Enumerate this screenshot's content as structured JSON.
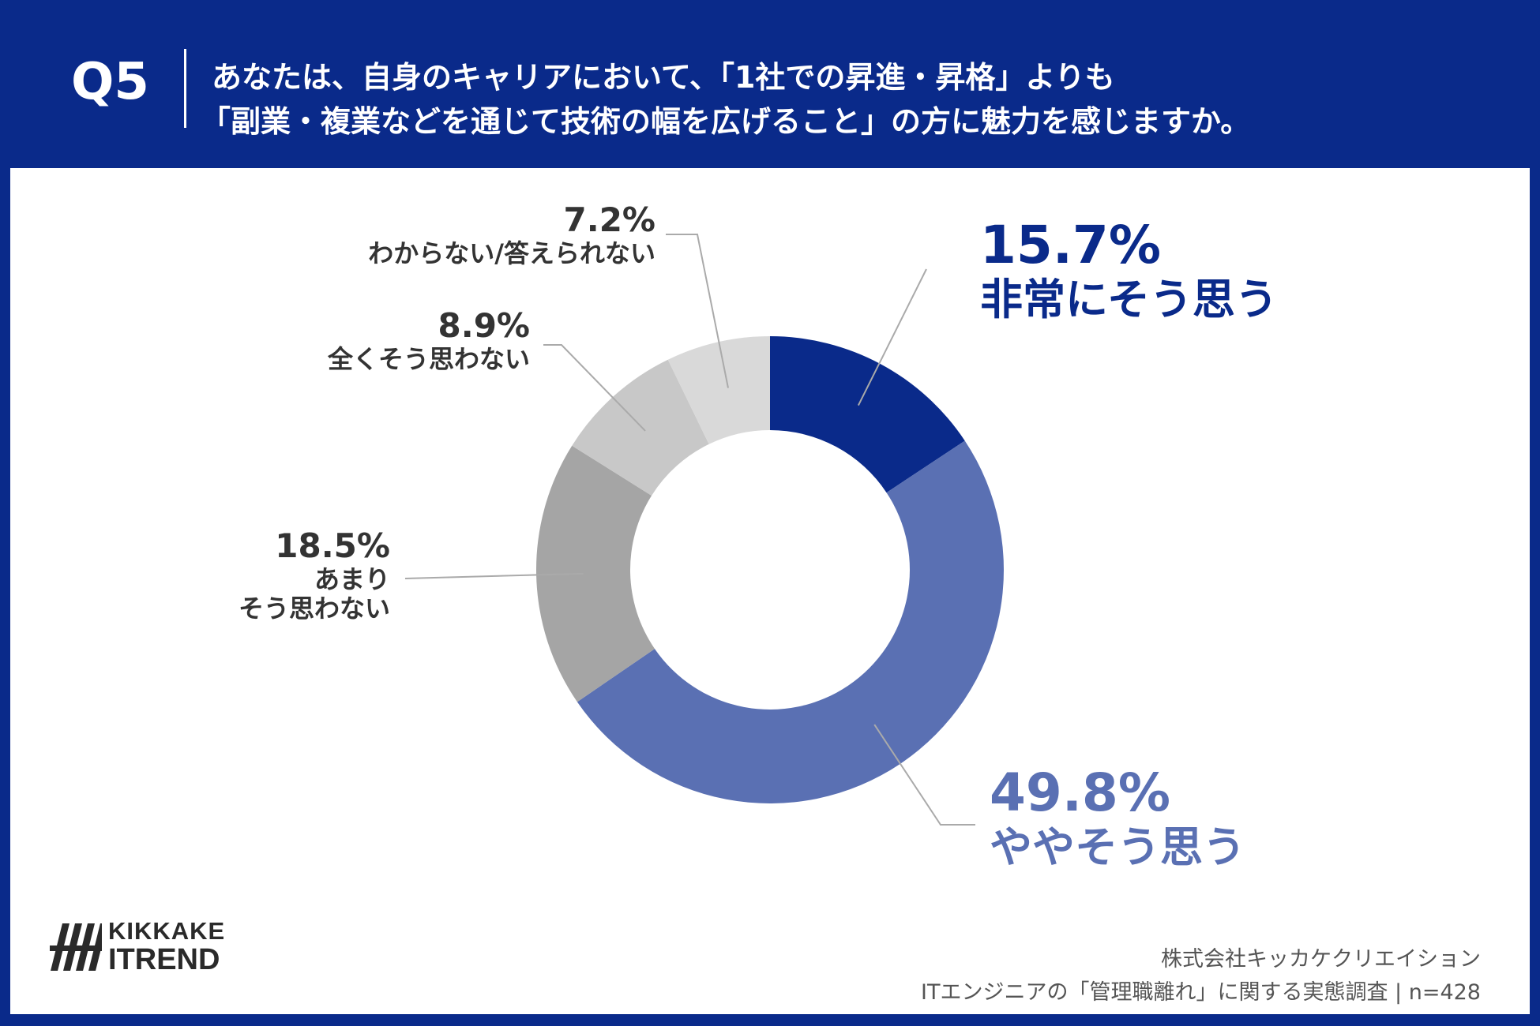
{
  "header": {
    "question_number": "Q5",
    "question_line1": "あなたは、自身のキャリアにおいて、「1社での昇進・昇格」よりも",
    "question_line2": "「副業・複業などを通じて技術の幅を広げること」の方に魅力を感じますか。"
  },
  "chart_data": {
    "type": "pie",
    "donut": true,
    "legend": "none",
    "slices": [
      {
        "label": "非常にそう思う",
        "value": 15.7,
        "value_label": "15.7%",
        "color": "#0a2a8a"
      },
      {
        "label": "ややそう思う",
        "value": 49.8,
        "value_label": "49.8%",
        "color": "#5a70b3"
      },
      {
        "label_lines": [
          "あまり",
          "そう思わない"
        ],
        "value": 18.5,
        "value_label": "18.5%",
        "color": "#a5a5a5"
      },
      {
        "label": "全くそう思わない",
        "value": 8.9,
        "value_label": "8.9%",
        "color": "#c8c8c8"
      },
      {
        "label": "わからない/答えられない",
        "value": 7.2,
        "value_label": "7.2%",
        "color": "#d9d9d9"
      }
    ]
  },
  "brand": {
    "line1": "KIKKAKE",
    "line2": "ITREND"
  },
  "footer": {
    "company": "株式会社キッカケクリエイション",
    "survey": "ITエンジニアの「管理職離れ」に関する実態調査 | n=428"
  }
}
